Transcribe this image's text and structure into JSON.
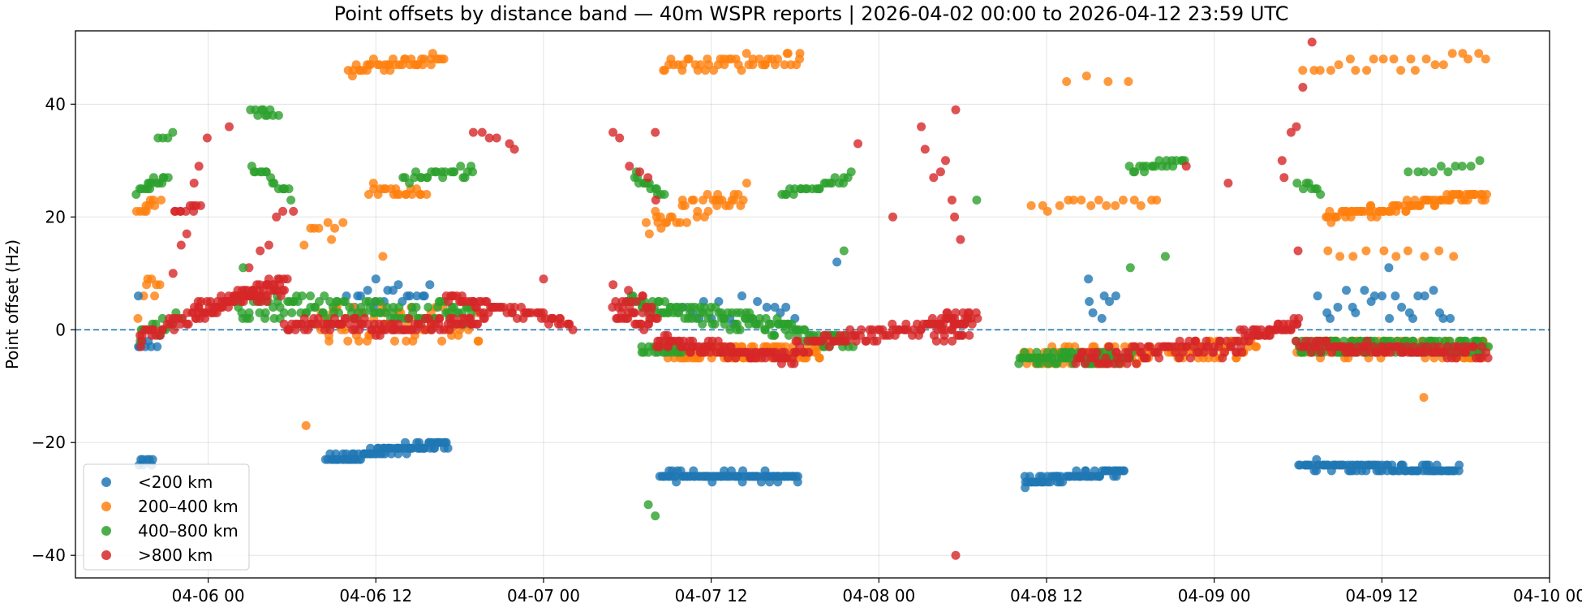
{
  "chart_data": {
    "type": "scatter",
    "title": "Point offsets by distance band — 40m WSPR reports | 2026-04-02 00:00 to 2026-04-12 23:59 UTC",
    "xlabel": "",
    "ylabel": "Point offset (Hz)",
    "x_range": [
      "2026-04-05 14:30",
      "2026-04-10 00:00"
    ],
    "ylim": [
      -44,
      53
    ],
    "x_ticks": [
      "04-06 00",
      "04-06 12",
      "04-07 00",
      "04-07 12",
      "04-08 00",
      "04-08 12",
      "04-09 00",
      "04-09 12",
      "04-10 00"
    ],
    "y_ticks": [
      "40",
      "20",
      "0",
      "−20",
      "−40"
    ],
    "grid": true,
    "reference_line": 0,
    "legend_position": "lower-left",
    "series": [
      {
        "name": "<200 km",
        "color": "#1f77b4",
        "clusters": [
          {
            "start": "2026-04-05 19:00",
            "end": "2026-04-05 20:00",
            "y_start": -24,
            "y_end": -23,
            "jitter": 0.6,
            "n": 8
          },
          {
            "start": "2026-04-06 08:30",
            "end": "2026-04-06 17:10",
            "y_start": -23,
            "y_end": -20,
            "jitter": 0.7,
            "n": 90
          },
          {
            "start": "2026-04-07 08:20",
            "end": "2026-04-07 18:20",
            "y_start": -26,
            "y_end": -26,
            "jitter": 0.6,
            "n": 100
          },
          {
            "start": "2026-04-08 10:20",
            "end": "2026-04-08 17:30",
            "y_start": -27,
            "y_end": -25,
            "jitter": 0.6,
            "n": 70
          },
          {
            "start": "2026-04-09 06:10",
            "end": "2026-04-09 17:30",
            "y_start": -24,
            "y_end": -25,
            "jitter": 0.6,
            "n": 100
          },
          {
            "start": "2026-04-05 19:00",
            "end": "2026-04-05 20:30",
            "y_start": -3,
            "y_end": -2,
            "jitter": 1.2,
            "n": 8
          },
          {
            "start": "2026-04-06 10:00",
            "end": "2026-04-06 16:00",
            "y_start": 5,
            "y_end": 8,
            "jitter": 2.0,
            "n": 18
          },
          {
            "start": "2026-04-07 10:00",
            "end": "2026-04-07 18:00",
            "y_start": 3,
            "y_end": 5,
            "jitter": 3.0,
            "n": 16
          },
          {
            "start": "2026-04-08 15:00",
            "end": "2026-04-08 17:00",
            "y_start": 2,
            "y_end": 5,
            "jitter": 3.5,
            "n": 6
          },
          {
            "start": "2026-04-09 07:30",
            "end": "2026-04-09 17:00",
            "y_start": 5,
            "y_end": 4,
            "jitter": 3.0,
            "n": 22
          }
        ]
      },
      {
        "name": "200–400 km",
        "color": "#ff7f0e",
        "clusters": [
          {
            "start": "2026-04-05 19:00",
            "end": "2026-04-05 20:30",
            "y_start": 21,
            "y_end": 23,
            "jitter": 1.2,
            "n": 10
          },
          {
            "start": "2026-04-05 19:00",
            "end": "2026-04-05 20:30",
            "y_start": 3,
            "y_end": 11,
            "jitter": 3.0,
            "n": 8
          },
          {
            "start": "2026-04-06 10:00",
            "end": "2026-04-06 16:50",
            "y_start": 46,
            "y_end": 48,
            "jitter": 1.0,
            "n": 40
          },
          {
            "start": "2026-04-06 11:30",
            "end": "2026-04-06 15:30",
            "y_start": 25,
            "y_end": 24,
            "jitter": 0.8,
            "n": 20
          },
          {
            "start": "2026-04-06 08:00",
            "end": "2026-04-06 19:30",
            "y_start": 1,
            "y_end": 1,
            "jitter": 3.5,
            "n": 60
          },
          {
            "start": "2026-04-06 07:00",
            "end": "2026-04-06 09:30",
            "y_start": 17,
            "y_end": 18,
            "jitter": 2.0,
            "n": 8
          },
          {
            "start": "2026-04-07 08:30",
            "end": "2026-04-07 18:30",
            "y_start": 47,
            "y_end": 48,
            "jitter": 1.2,
            "n": 45
          },
          {
            "start": "2026-04-07 07:30",
            "end": "2026-04-07 14:30",
            "y_start": 19,
            "y_end": 24,
            "jitter": 2.0,
            "n": 40
          },
          {
            "start": "2026-04-07 09:00",
            "end": "2026-04-07 20:00",
            "y_start": -4,
            "y_end": -4,
            "jitter": 1.5,
            "n": 90
          },
          {
            "start": "2026-04-08 11:00",
            "end": "2026-04-08 20:00",
            "y_start": 22,
            "y_end": 23,
            "jitter": 0.8,
            "n": 16
          },
          {
            "start": "2026-04-08 10:30",
            "end": "2026-04-09 03:00",
            "y_start": -5,
            "y_end": -3,
            "jitter": 1.5,
            "n": 110
          },
          {
            "start": "2026-04-08 13:30",
            "end": "2026-04-08 18:00",
            "y_start": 45,
            "y_end": 44,
            "jitter": 0.8,
            "n": 4
          },
          {
            "start": "2026-04-09 06:30",
            "end": "2026-04-09 19:30",
            "y_start": 46,
            "y_end": 48,
            "jitter": 1.5,
            "n": 22
          },
          {
            "start": "2026-04-09 08:00",
            "end": "2026-04-09 19:30",
            "y_start": 20,
            "y_end": 24,
            "jitter": 0.8,
            "n": 90
          },
          {
            "start": "2026-04-09 06:00",
            "end": "2026-04-09 19:30",
            "y_start": -3,
            "y_end": -4,
            "jitter": 1.5,
            "n": 90
          },
          {
            "start": "2026-04-09 08:00",
            "end": "2026-04-09 17:00",
            "y_start": 13,
            "y_end": 14,
            "jitter": 0.8,
            "n": 10
          }
        ]
      },
      {
        "name": "400–800 km",
        "color": "#2ca02c",
        "clusters": [
          {
            "start": "2026-04-05 19:00",
            "end": "2026-04-05 21:00",
            "y_start": 24,
            "y_end": 27,
            "jitter": 1.0,
            "n": 16
          },
          {
            "start": "2026-04-05 20:30",
            "end": "2026-04-05 21:30",
            "y_start": 34,
            "y_end": 35,
            "jitter": 0.5,
            "n": 4
          },
          {
            "start": "2026-04-05 19:00",
            "end": "2026-04-05 22:00",
            "y_start": -1,
            "y_end": 3,
            "jitter": 1.5,
            "n": 14
          },
          {
            "start": "2026-04-06 03:00",
            "end": "2026-04-06 05:00",
            "y_start": 39,
            "y_end": 38,
            "jitter": 0.5,
            "n": 10
          },
          {
            "start": "2026-04-06 03:00",
            "end": "2026-04-06 06:00",
            "y_start": 29,
            "y_end": 24,
            "jitter": 0.8,
            "n": 16
          },
          {
            "start": "2026-04-06 02:00",
            "end": "2026-04-06 19:00",
            "y_start": 4,
            "y_end": 3,
            "jitter": 2.0,
            "n": 110
          },
          {
            "start": "2026-04-06 14:00",
            "end": "2026-04-06 19:00",
            "y_start": 27,
            "y_end": 28,
            "jitter": 0.8,
            "n": 24
          },
          {
            "start": "2026-04-07 06:30",
            "end": "2026-04-07 08:30",
            "y_start": 27,
            "y_end": 24,
            "jitter": 0.6,
            "n": 14
          },
          {
            "start": "2026-04-07 06:00",
            "end": "2026-04-07 22:00",
            "y_start": 5,
            "y_end": -2,
            "jitter": 1.5,
            "n": 130
          },
          {
            "start": "2026-04-07 07:00",
            "end": "2026-04-07 10:00",
            "y_start": -4,
            "y_end": -4,
            "jitter": 1.0,
            "n": 20
          },
          {
            "start": "2026-04-07 17:00",
            "end": "2026-04-07 22:00",
            "y_start": 24,
            "y_end": 27,
            "jitter": 0.6,
            "n": 24
          },
          {
            "start": "2026-04-08 10:00",
            "end": "2026-04-08 18:00",
            "y_start": -5,
            "y_end": -5,
            "jitter": 0.8,
            "n": 80
          },
          {
            "start": "2026-04-08 18:00",
            "end": "2026-04-08 22:00",
            "y_start": 28,
            "y_end": 30,
            "jitter": 0.6,
            "n": 20
          },
          {
            "start": "2026-04-09 06:00",
            "end": "2026-04-09 19:30",
            "y_start": -3,
            "y_end": -3,
            "jitter": 1.2,
            "n": 140
          },
          {
            "start": "2026-04-09 06:00",
            "end": "2026-04-09 07:30",
            "y_start": 26,
            "y_end": 24,
            "jitter": 0.6,
            "n": 8
          },
          {
            "start": "2026-04-09 14:00",
            "end": "2026-04-09 19:00",
            "y_start": 28,
            "y_end": 29,
            "jitter": 0.6,
            "n": 10
          }
        ]
      },
      {
        "name": ">800 km",
        "color": "#d62728",
        "clusters": [
          {
            "start": "2026-04-05 19:00",
            "end": "2026-04-05 23:00",
            "y_start": -2,
            "y_end": 3,
            "jitter": 1.2,
            "n": 30
          },
          {
            "start": "2026-04-05 21:30",
            "end": "2026-04-05 23:30",
            "y_start": 21,
            "y_end": 22,
            "jitter": 0.6,
            "n": 10
          },
          {
            "start": "2026-04-05 23:00",
            "end": "2026-04-06 05:30",
            "y_start": 3,
            "y_end": 8,
            "jitter": 1.5,
            "n": 90
          },
          {
            "start": "2026-04-06 05:30",
            "end": "2026-04-06 12:00",
            "y_start": 1,
            "y_end": 1,
            "jitter": 1.0,
            "n": 50
          },
          {
            "start": "2026-04-06 12:00",
            "end": "2026-04-06 20:00",
            "y_start": 0,
            "y_end": 2,
            "jitter": 1.0,
            "n": 60
          },
          {
            "start": "2026-04-06 17:00",
            "end": "2026-04-07 02:00",
            "y_start": 6,
            "y_end": 1,
            "jitter": 0.8,
            "n": 60
          },
          {
            "start": "2026-04-07 05:00",
            "end": "2026-04-07 08:00",
            "y_start": 5,
            "y_end": 2,
            "jitter": 3.0,
            "n": 40
          },
          {
            "start": "2026-04-07 08:00",
            "end": "2026-04-07 18:00",
            "y_start": -2,
            "y_end": -5,
            "jitter": 1.0,
            "n": 100
          },
          {
            "start": "2026-04-07 18:00",
            "end": "2026-04-08 07:00",
            "y_start": -3,
            "y_end": 2,
            "jitter": 1.2,
            "n": 90
          },
          {
            "start": "2026-04-08 04:00",
            "end": "2026-04-08 06:30",
            "y_start": 0,
            "y_end": 1,
            "jitter": 2.5,
            "n": 30
          },
          {
            "start": "2026-04-08 14:00",
            "end": "2026-04-09 02:00",
            "y_start": -5,
            "y_end": -3,
            "jitter": 1.5,
            "n": 90
          },
          {
            "start": "2026-04-09 02:00",
            "end": "2026-04-09 06:00",
            "y_start": -1,
            "y_end": 1,
            "jitter": 1.0,
            "n": 40
          },
          {
            "start": "2026-04-09 06:00",
            "end": "2026-04-09 19:30",
            "y_start": -3,
            "y_end": -4,
            "jitter": 1.0,
            "n": 100
          },
          {
            "start": "2026-04-05 21:30",
            "end": "2026-04-06 00:00",
            "y_start": 8,
            "y_end": 33,
            "jitter": 3.0,
            "n": 6
          },
          {
            "start": "2026-04-06 03:00",
            "end": "2026-04-06 06:00",
            "y_start": 12,
            "y_end": 24,
            "jitter": 4.0,
            "n": 6
          },
          {
            "start": "2026-04-06 19:00",
            "end": "2026-04-06 22:00",
            "y_start": 38,
            "y_end": 31,
            "jitter": 3.0,
            "n": 6
          },
          {
            "start": "2026-04-07 05:00",
            "end": "2026-04-07 08:00",
            "y_start": 37,
            "y_end": 21,
            "jitter": 4.0,
            "n": 6
          },
          {
            "start": "2026-04-08 03:00",
            "end": "2026-04-08 06:00",
            "y_start": 34,
            "y_end": 20,
            "jitter": 5.0,
            "n": 8
          },
          {
            "start": "2026-04-09 05:00",
            "end": "2026-04-09 07:00",
            "y_start": 27,
            "y_end": 49,
            "jitter": 3.0,
            "n": 5
          }
        ]
      }
    ],
    "outliers": [
      {
        "series": 0,
        "x": "2026-04-05 19:00",
        "y": 6
      },
      {
        "series": 0,
        "x": "2026-04-06 12:00",
        "y": 9
      },
      {
        "series": 0,
        "x": "2026-04-07 21:00",
        "y": 12
      },
      {
        "series": 0,
        "x": "2026-04-08 15:00",
        "y": 9
      },
      {
        "series": 0,
        "x": "2026-04-09 12:30",
        "y": 11
      },
      {
        "series": 1,
        "x": "2026-04-06 07:00",
        "y": -17
      },
      {
        "series": 1,
        "x": "2026-04-09 15:00",
        "y": -12
      },
      {
        "series": 1,
        "x": "2026-04-06 12:30",
        "y": 13
      },
      {
        "series": 2,
        "x": "2026-04-07 07:30",
        "y": -31
      },
      {
        "series": 2,
        "x": "2026-04-07 08:00",
        "y": -33
      },
      {
        "series": 2,
        "x": "2026-04-08 18:00",
        "y": 11
      },
      {
        "series": 2,
        "x": "2026-04-08 20:30",
        "y": 13
      },
      {
        "series": 2,
        "x": "2026-04-06 02:30",
        "y": 11
      },
      {
        "series": 2,
        "x": "2026-04-07 21:30",
        "y": 14
      },
      {
        "series": 2,
        "x": "2026-04-08 07:00",
        "y": 23
      },
      {
        "series": 3,
        "x": "2026-04-08 05:30",
        "y": -40
      },
      {
        "series": 3,
        "x": "2026-04-08 05:30",
        "y": 39
      },
      {
        "series": 3,
        "x": "2026-04-06 01:30",
        "y": 36
      },
      {
        "series": 3,
        "x": "2026-04-07 08:00",
        "y": 35
      },
      {
        "series": 3,
        "x": "2026-04-07 22:30",
        "y": 33
      },
      {
        "series": 3,
        "x": "2026-04-09 01:00",
        "y": 26
      },
      {
        "series": 3,
        "x": "2026-04-09 05:00",
        "y": 27
      },
      {
        "series": 3,
        "x": "2026-04-08 22:00",
        "y": 29
      },
      {
        "series": 3,
        "x": "2026-04-08 01:00",
        "y": 20
      },
      {
        "series": 3,
        "x": "2026-04-09 06:00",
        "y": 14
      },
      {
        "series": 3,
        "x": "2026-04-07 00:00",
        "y": 9
      }
    ]
  }
}
